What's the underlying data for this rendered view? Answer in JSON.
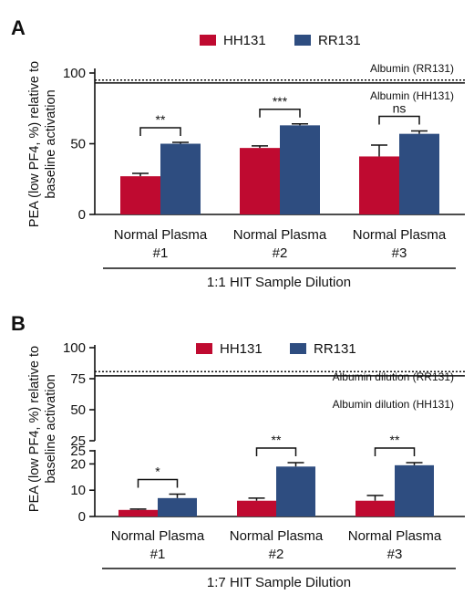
{
  "colors": {
    "HH131": "#bf0a30",
    "RR131": "#2e4d80",
    "axis": "#111111"
  },
  "chart_data": [
    {
      "panel": "A",
      "type": "bar",
      "ylabel": "PEA (low PF4, %) relative to baseline activation",
      "ylabel_lines": [
        "PEA (low PF4, %) relative to",
        "baseline activation"
      ],
      "ylim": [
        0,
        100
      ],
      "yticks": [
        0,
        50,
        100
      ],
      "legend": {
        "position": "top-center",
        "entries": [
          "HH131",
          "RR131"
        ]
      },
      "categories": [
        "Normal Plasma #1",
        "Normal Plasma #2",
        "Normal Plasma #3"
      ],
      "category_lines": [
        [
          "Normal Plasma",
          "#1"
        ],
        [
          "Normal Plasma",
          "#2"
        ],
        [
          "Normal Plasma",
          "#3"
        ]
      ],
      "series": [
        {
          "name": "HH131",
          "values": [
            27,
            47,
            41
          ],
          "errors": [
            2,
            1.5,
            8
          ]
        },
        {
          "name": "RR131",
          "values": [
            50,
            63,
            57
          ],
          "errors": [
            1,
            1,
            2
          ]
        }
      ],
      "reference_lines": [
        {
          "label": "Albumin  (RR131)",
          "value": 95,
          "style": "dotted"
        },
        {
          "label": "Albumin  (HH131)",
          "value": 93,
          "style": "solid"
        }
      ],
      "significance": [
        "**",
        "***",
        "ns"
      ],
      "xlabel": "1:1 HIT Sample Dilution"
    },
    {
      "panel": "B",
      "type": "bar",
      "ylabel": "PEA (low PF4, %) relative to baseline activation",
      "ylabel_lines": [
        "PEA (low PF4, %) relative to",
        "baseline activation"
      ],
      "ylim": [
        0,
        100
      ],
      "axis_break": [
        25,
        25
      ],
      "yticks_lower": [
        0,
        10,
        20,
        25
      ],
      "yticks_upper": [
        25,
        50,
        75,
        100
      ],
      "legend": {
        "position": "top-center",
        "entries": [
          "HH131",
          "RR131"
        ]
      },
      "categories": [
        "Normal Plasma #1",
        "Normal Plasma #2",
        "Normal Plasma #3"
      ],
      "category_lines": [
        [
          "Normal Plasma",
          "#1"
        ],
        [
          "Normal Plasma",
          "#2"
        ],
        [
          "Normal Plasma",
          "#3"
        ]
      ],
      "series": [
        {
          "name": "HH131",
          "values": [
            2.5,
            6,
            6
          ],
          "errors": [
            0.3,
            1,
            2
          ]
        },
        {
          "name": "RR131",
          "values": [
            7,
            19,
            19.5
          ],
          "errors": [
            1.5,
            1.5,
            1
          ]
        }
      ],
      "reference_lines": [
        {
          "label": "Albumin dilution  (RR131)",
          "value": 80,
          "style": "dotted"
        },
        {
          "label": "Albumin dilution  (HH131)",
          "value": 78,
          "style": "solid"
        }
      ],
      "significance": [
        "*",
        "**",
        "**"
      ],
      "xlabel": "1:7 HIT Sample Dilution"
    }
  ]
}
